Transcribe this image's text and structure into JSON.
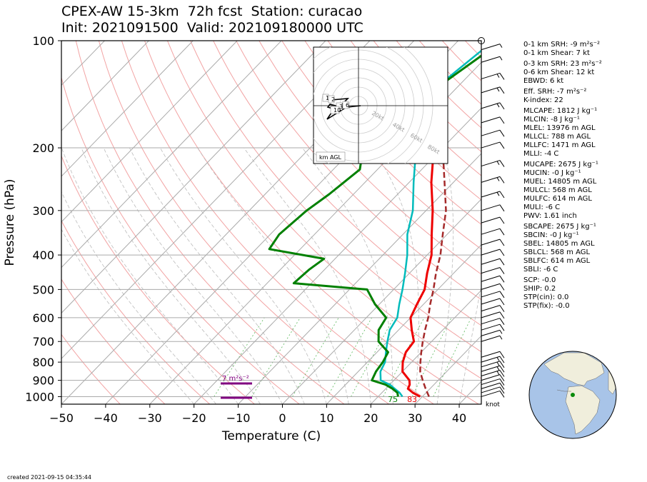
{
  "header": {
    "line1": "CPEX-AW 15-3km  72h fcst  Station: curacao",
    "line2": "Init: 2021091500  Valid: 202109180000 UTC"
  },
  "footer": {
    "created": "created 2021-09-15 04:35:44"
  },
  "chart_data": {
    "type": "skewt",
    "xlabel": "Temperature (C)",
    "ylabel": "Pressure (hPa)",
    "xlim": [
      -50,
      45
    ],
    "ylim": [
      1050,
      100
    ],
    "x_ticks": [
      -50,
      -40,
      -30,
      -20,
      -10,
      0,
      10,
      20,
      30,
      40
    ],
    "y_ticks": [
      100,
      200,
      300,
      400,
      500,
      600,
      700,
      800,
      900,
      1000
    ],
    "y_scale": "log",
    "temperature_profile": {
      "color": "#ee0000",
      "points": [
        [
          29.5,
          1000
        ],
        [
          27,
          975
        ],
        [
          25,
          950
        ],
        [
          24.5,
          925
        ],
        [
          23.5,
          900
        ],
        [
          20,
          850
        ],
        [
          18,
          800
        ],
        [
          16.5,
          750
        ],
        [
          16,
          700
        ],
        [
          13,
          650
        ],
        [
          10,
          600
        ],
        [
          8.5,
          550
        ],
        [
          7,
          500
        ],
        [
          4,
          450
        ],
        [
          1,
          400
        ],
        [
          -3.5,
          350
        ],
        [
          -8.5,
          300
        ],
        [
          -15,
          250
        ],
        [
          -22,
          200
        ],
        [
          -29,
          160
        ],
        [
          -35,
          130
        ]
      ]
    },
    "dewpoint_profile": {
      "color": "#00bbbb",
      "points": [
        [
          25.5,
          1000
        ],
        [
          24,
          975
        ],
        [
          22,
          950
        ],
        [
          20,
          925
        ],
        [
          17,
          900
        ],
        [
          15,
          850
        ],
        [
          14,
          800
        ],
        [
          12,
          750
        ],
        [
          10,
          700
        ],
        [
          8,
          650
        ],
        [
          7,
          600
        ],
        [
          4.5,
          550
        ],
        [
          2,
          500
        ],
        [
          -1,
          450
        ],
        [
          -4.5,
          400
        ],
        [
          -9,
          350
        ],
        [
          -13,
          300
        ],
        [
          -19,
          250
        ],
        [
          -26,
          200
        ],
        [
          -33,
          160
        ],
        [
          -35,
          140
        ],
        [
          -32,
          100
        ]
      ]
    },
    "wetbulb_profile": {
      "color": "#008000",
      "points": [
        [
          24.5,
          1000
        ],
        [
          23.5,
          975
        ],
        [
          21.5,
          950
        ],
        [
          19,
          925
        ],
        [
          15,
          900
        ],
        [
          14,
          850
        ],
        [
          13.5,
          800
        ],
        [
          12.5,
          750
        ],
        [
          8,
          700
        ],
        [
          5.5,
          650
        ],
        [
          4.5,
          600
        ],
        [
          -1,
          550
        ],
        [
          -6,
          500
        ],
        [
          -24,
          480
        ],
        [
          -23.5,
          440
        ],
        [
          -22.5,
          410
        ],
        [
          -37,
          385
        ],
        [
          -38,
          350
        ],
        [
          -37,
          300
        ],
        [
          -35.5,
          270
        ],
        [
          -34,
          230
        ],
        [
          -38,
          200
        ],
        [
          -33,
          175
        ],
        [
          -37,
          155
        ],
        [
          -35,
          140
        ],
        [
          -30,
          100
        ]
      ]
    },
    "parcel_profile": {
      "color": "#a52a2a",
      "points": [
        [
          31.5,
          1000
        ],
        [
          29,
          950
        ],
        [
          26.5,
          900
        ],
        [
          24,
          850
        ],
        [
          22,
          800
        ],
        [
          20,
          750
        ],
        [
          18,
          700
        ],
        [
          16,
          650
        ],
        [
          14,
          600
        ],
        [
          11.5,
          550
        ],
        [
          9,
          500
        ],
        [
          6,
          450
        ],
        [
          3,
          400
        ],
        [
          -1,
          350
        ],
        [
          -5.5,
          300
        ],
        [
          -12,
          250
        ],
        [
          -20,
          200
        ],
        [
          -29,
          160
        ],
        [
          -38,
          130
        ],
        [
          -48,
          110
        ]
      ]
    },
    "surface_labels": {
      "wetbulb": "75",
      "temperature": "83"
    },
    "srh_label": "7 m²s⁻²",
    "inset": {
      "label": "km AGL",
      "speed_rings": [
        "20kt",
        "40kt",
        "60kt",
        "80kt"
      ],
      "hodograph_markers": [
        "1",
        "2",
        "3",
        "6",
        "10"
      ]
    },
    "barb_unit": "knot",
    "barbs": [
      [
        1000,
        10
      ],
      [
        975,
        10
      ],
      [
        950,
        10
      ],
      [
        925,
        12
      ],
      [
        900,
        12
      ],
      [
        875,
        15
      ],
      [
        850,
        15
      ],
      [
        825,
        15
      ],
      [
        800,
        15
      ],
      [
        775,
        10
      ],
      [
        700,
        5
      ],
      [
        675,
        5
      ],
      [
        650,
        10
      ],
      [
        625,
        10
      ],
      [
        600,
        10
      ],
      [
        575,
        10
      ],
      [
        550,
        10
      ],
      [
        525,
        10
      ],
      [
        500,
        10
      ],
      [
        475,
        10
      ],
      [
        450,
        10
      ],
      [
        425,
        10
      ],
      [
        400,
        10
      ],
      [
        375,
        10
      ],
      [
        350,
        10
      ],
      [
        325,
        10
      ],
      [
        300,
        10
      ],
      [
        275,
        15
      ],
      [
        250,
        15
      ],
      [
        225,
        15
      ],
      [
        200,
        10
      ],
      [
        185,
        10
      ],
      [
        170,
        10
      ],
      [
        155,
        15
      ],
      [
        140,
        15
      ],
      [
        128,
        15
      ],
      [
        115,
        5
      ],
      [
        106,
        5
      ]
    ],
    "parameters": [
      "0-1 km SRH: -9 m²s⁻²",
      "0-1 km Shear: 7 kt",
      "0-3 km SRH: 23 m²s⁻²",
      "0-6 km Shear: 12 kt",
      "EBWD: 6 kt",
      "Eff. SRH: -7 m²s⁻²",
      "K-index: 22",
      "MLCAPE: 1812 J kg⁻¹",
      "MLCIN: -8 J kg⁻¹",
      "MLEL: 13976 m AGL",
      "MLLCL: 788 m AGL",
      "MLLFC: 1471 m AGL",
      "MLLI: -4 C",
      "MUCAPE: 2675 J kg⁻¹",
      "MUCIN: -0 J kg⁻¹",
      "MUEL: 14805 m AGL",
      "MULCL: 568 m AGL",
      "MULFC: 614 m AGL",
      "MULI: -6 C",
      "PWV: 1.61 inch",
      "SBCAPE: 2675 J kg⁻¹",
      "SBCIN: -0 J kg⁻¹",
      "SBEL: 14805 m AGL",
      "SBLCL: 568 m AGL",
      "SBLFC: 614 m AGL",
      "SBLI: -6 C",
      "SCP: -0.0",
      "SHIP: 0.2",
      "STP(cin): 0.0",
      "STP(fix): -0.0"
    ],
    "globe": {
      "ocean": "#a8c4e8",
      "land": "#f0eedc",
      "marker": "#0a8a0a"
    }
  }
}
